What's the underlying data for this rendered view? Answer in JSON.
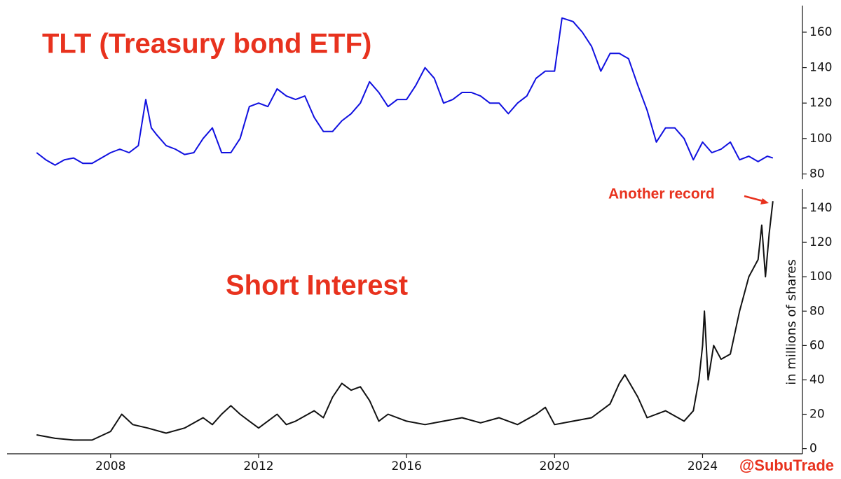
{
  "chart_data": [
    {
      "type": "line",
      "title": "TLT (Treasury bond ETF)",
      "x": [
        2006.0,
        2006.25,
        2006.5,
        2006.75,
        2007.0,
        2007.25,
        2007.5,
        2007.75,
        2008.0,
        2008.25,
        2008.5,
        2008.75,
        2008.95,
        2009.1,
        2009.25,
        2009.5,
        2009.75,
        2010.0,
        2010.25,
        2010.5,
        2010.75,
        2011.0,
        2011.25,
        2011.5,
        2011.75,
        2012.0,
        2012.25,
        2012.5,
        2012.75,
        2013.0,
        2013.25,
        2013.5,
        2013.75,
        2014.0,
        2014.25,
        2014.5,
        2014.75,
        2015.0,
        2015.25,
        2015.5,
        2015.75,
        2016.0,
        2016.25,
        2016.5,
        2016.75,
        2017.0,
        2017.25,
        2017.5,
        2017.75,
        2018.0,
        2018.25,
        2018.5,
        2018.75,
        2019.0,
        2019.25,
        2019.5,
        2019.75,
        2020.0,
        2020.2,
        2020.5,
        2020.75,
        2021.0,
        2021.25,
        2021.5,
        2021.75,
        2022.0,
        2022.25,
        2022.5,
        2022.75,
        2023.0,
        2023.25,
        2023.5,
        2023.75,
        2024.0,
        2024.25,
        2024.5,
        2024.75,
        2025.0,
        2025.25,
        2025.5,
        2025.75,
        2025.9
      ],
      "series": [
        {
          "color": "#1010e0",
          "values": [
            92,
            88,
            85,
            88,
            89,
            86,
            86,
            89,
            92,
            94,
            92,
            96,
            122,
            106,
            102,
            96,
            94,
            91,
            92,
            100,
            106,
            92,
            92,
            100,
            118,
            120,
            118,
            128,
            124,
            122,
            124,
            112,
            104,
            104,
            110,
            114,
            120,
            132,
            126,
            118,
            122,
            122,
            130,
            140,
            134,
            120,
            122,
            126,
            126,
            124,
            120,
            120,
            114,
            120,
            124,
            134,
            138,
            138,
            168,
            166,
            160,
            152,
            138,
            148,
            148,
            145,
            130,
            116,
            98,
            106,
            106,
            100,
            88,
            98,
            92,
            94,
            98,
            88,
            90,
            87,
            90,
            89
          ]
        }
      ],
      "xlim": [
        2005.2,
        2026.7
      ],
      "ylim": [
        77,
        175
      ],
      "yticks": [
        80,
        100,
        120,
        140,
        160
      ]
    },
    {
      "type": "line",
      "title": "Short Interest",
      "ylabel": "in millions of shares",
      "annotation": "Another record",
      "credit": "@SubuTrade",
      "x": [
        2006.0,
        2006.5,
        2007.0,
        2007.5,
        2008.0,
        2008.3,
        2008.6,
        2009.0,
        2009.5,
        2010.0,
        2010.5,
        2010.75,
        2011.0,
        2011.25,
        2011.5,
        2011.75,
        2012.0,
        2012.5,
        2012.75,
        2013.0,
        2013.5,
        2013.75,
        2014.0,
        2014.25,
        2014.5,
        2014.75,
        2015.0,
        2015.25,
        2015.5,
        2016.0,
        2016.5,
        2017.0,
        2017.5,
        2018.0,
        2018.5,
        2019.0,
        2019.5,
        2019.75,
        2020.0,
        2020.5,
        2021.0,
        2021.5,
        2021.75,
        2021.9,
        2022.25,
        2022.5,
        2023.0,
        2023.5,
        2023.75,
        2023.9,
        2024.0,
        2024.05,
        2024.15,
        2024.3,
        2024.5,
        2024.75,
        2025.0,
        2025.25,
        2025.5,
        2025.6,
        2025.7,
        2025.8,
        2025.9
      ],
      "series": [
        {
          "color": "#111111",
          "values": [
            8,
            6,
            5,
            5,
            10,
            20,
            14,
            12,
            9,
            12,
            18,
            14,
            20,
            25,
            20,
            16,
            12,
            20,
            14,
            16,
            22,
            18,
            30,
            38,
            34,
            36,
            28,
            16,
            20,
            16,
            14,
            16,
            18,
            15,
            18,
            14,
            20,
            24,
            14,
            16,
            18,
            26,
            38,
            43,
            30,
            18,
            22,
            16,
            22,
            40,
            60,
            80,
            40,
            60,
            52,
            55,
            80,
            100,
            110,
            130,
            100,
            125,
            144
          ]
        }
      ],
      "xlim": [
        2005.2,
        2026.7
      ],
      "ylim": [
        -3,
        151
      ],
      "yticks": [
        0,
        20,
        40,
        60,
        80,
        100,
        120,
        140
      ],
      "xticks": [
        2008,
        2012,
        2016,
        2020,
        2024
      ]
    }
  ]
}
